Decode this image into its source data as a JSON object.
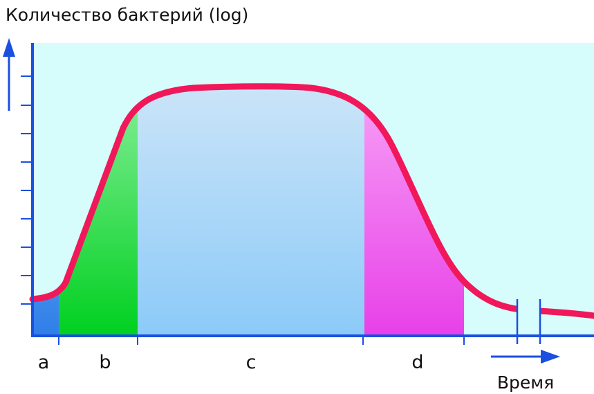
{
  "title": "Количество бактерий (log)",
  "phases": [
    "a",
    "b",
    "c",
    "d"
  ],
  "x_axis_label": "Время"
}
